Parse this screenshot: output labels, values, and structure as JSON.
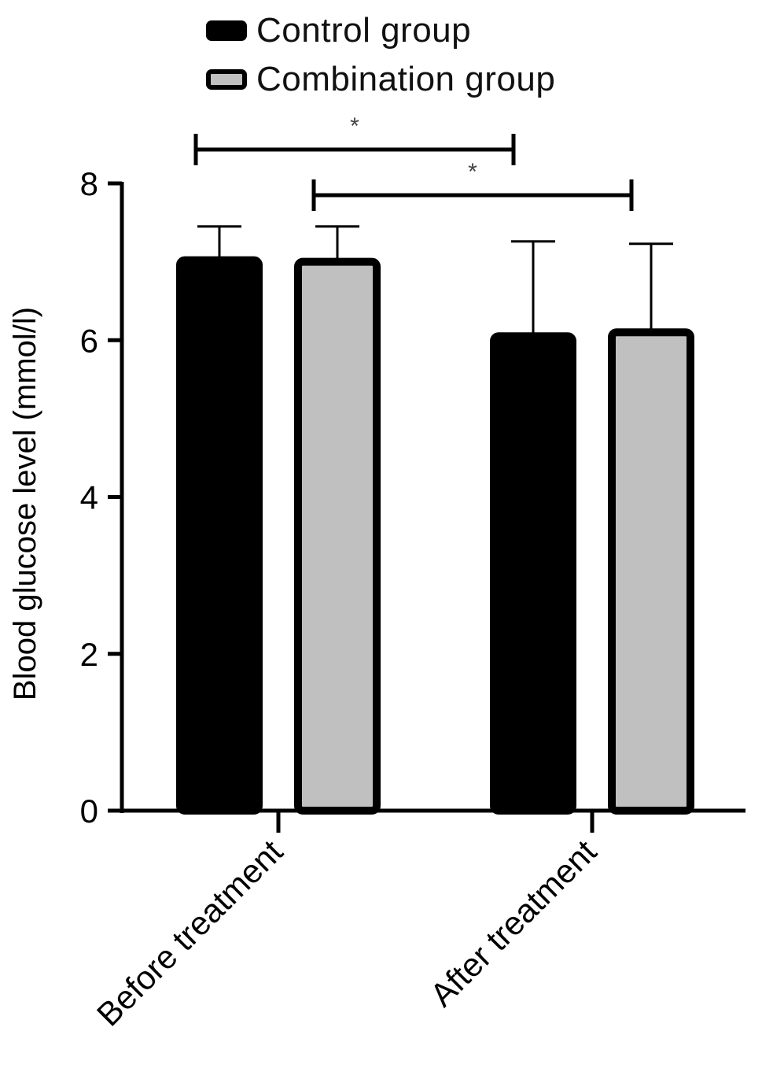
{
  "legend": {
    "items": [
      {
        "label": "Control group",
        "color": "#000000"
      },
      {
        "label": "Combination group",
        "color": "#c0c0c0"
      }
    ]
  },
  "chart_data": {
    "type": "bar",
    "categories": [
      "Before treatment",
      "After treatment"
    ],
    "series": [
      {
        "name": "Control group",
        "color": "#000000",
        "values": [
          7.02,
          6.05
        ],
        "errors": [
          0.43,
          1.21
        ]
      },
      {
        "name": "Combination group",
        "color": "#c0c0c0",
        "values": [
          7.0,
          6.1
        ],
        "errors": [
          0.45,
          1.13
        ]
      }
    ],
    "ylabel": "Blood glucose level (mmol/l)",
    "xlabel": "",
    "ylim": [
      0,
      8
    ],
    "yticks": [
      0,
      2,
      4,
      6,
      8
    ],
    "error_bars": "upper",
    "significance": [
      {
        "label": "*",
        "from": {
          "series": 0,
          "category": 0
        },
        "to": {
          "series": 0,
          "category": 1
        }
      },
      {
        "label": "*",
        "from": {
          "series": 1,
          "category": 0
        },
        "to": {
          "series": 1,
          "category": 1
        }
      }
    ],
    "grid": false,
    "legend_position": "top"
  }
}
